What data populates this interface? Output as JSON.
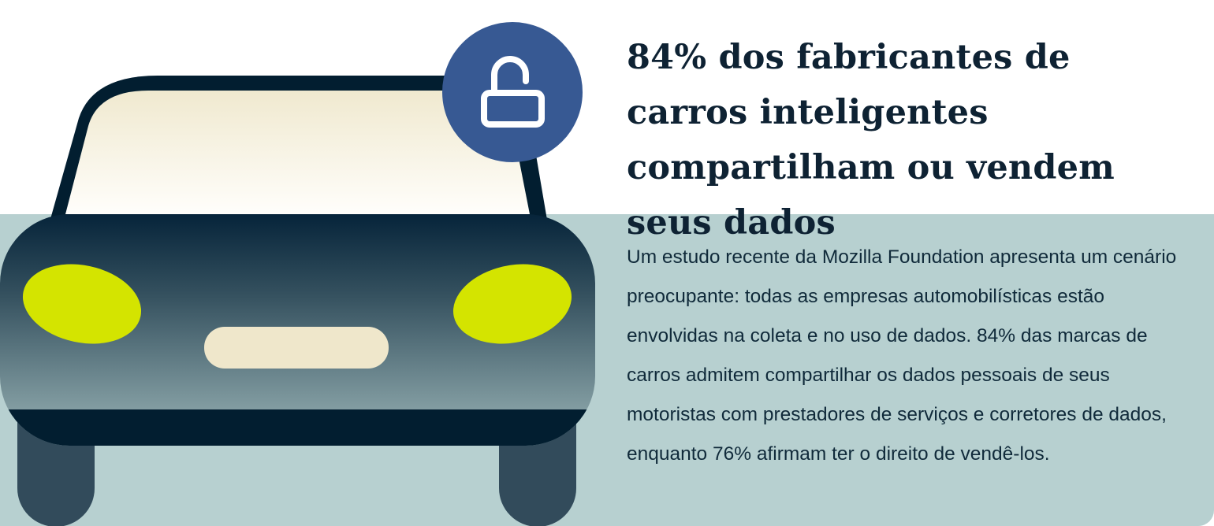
{
  "headline": "84% dos fabricantes de carros inteligentes compartilham ou vendem seus dados",
  "body": "Um estudo recente da Mozilla Foundation apresenta um cenário preocupante: todas as empresas automobilísticas estão envolvidas na coleta e no uso de dados. 84% das marcas de carros admitem compartilhar os dados pessoais de seus motoristas com prestadores de serviços e corretores de dados, enquanto 76% afirmam ter o direito de vendê-los.",
  "illustration": {
    "subject": "car-front",
    "badge_icon": "unlocked-padlock-icon"
  },
  "colors": {
    "panel": "#b7d0d0",
    "car_dark": "#021e30",
    "headlights": "#d4e400",
    "badge": "#375993",
    "windshield": "#f2ecd2",
    "text": "#0e2233"
  }
}
